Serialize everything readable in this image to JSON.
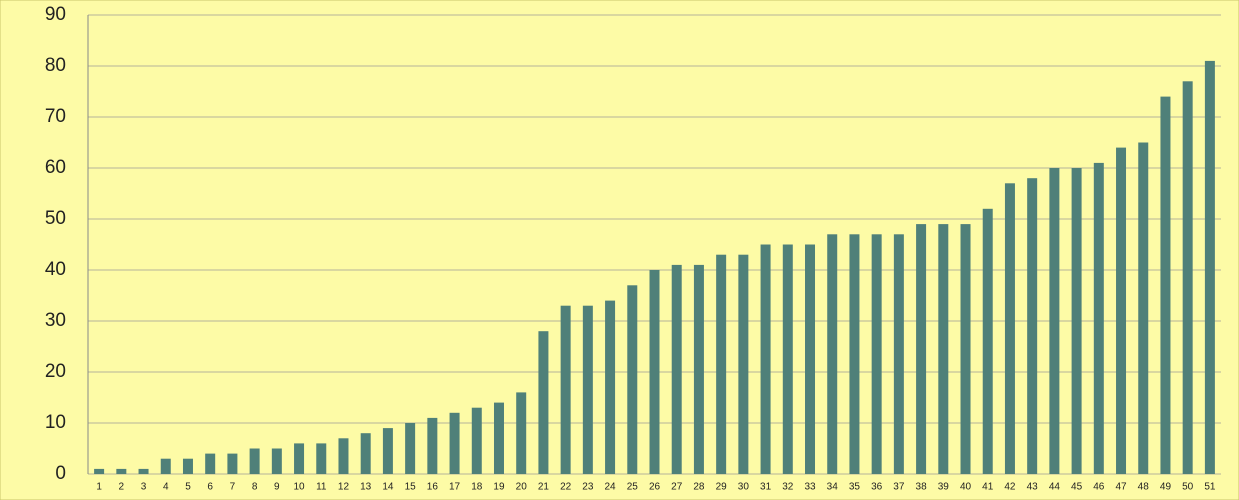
{
  "chart_data": {
    "type": "bar",
    "categories": [
      "1",
      "2",
      "3",
      "4",
      "5",
      "6",
      "7",
      "8",
      "9",
      "10",
      "11",
      "12",
      "13",
      "14",
      "15",
      "16",
      "17",
      "18",
      "19",
      "20",
      "21",
      "22",
      "23",
      "24",
      "25",
      "26",
      "27",
      "28",
      "29",
      "30",
      "31",
      "32",
      "33",
      "34",
      "35",
      "36",
      "37",
      "38",
      "39",
      "40",
      "41",
      "42",
      "43",
      "44",
      "45",
      "46",
      "47",
      "48",
      "49",
      "50",
      "51"
    ],
    "values": [
      1,
      1,
      1,
      3,
      3,
      4,
      4,
      5,
      5,
      6,
      6,
      7,
      8,
      9,
      10,
      11,
      12,
      13,
      14,
      16,
      28,
      33,
      33,
      34,
      37,
      40,
      41,
      41,
      43,
      43,
      45,
      45,
      45,
      47,
      47,
      47,
      47,
      49,
      49,
      49,
      52,
      57,
      58,
      60,
      60,
      61,
      64,
      65,
      74,
      77,
      81
    ],
    "color": "#4f8079",
    "ylim": [
      0,
      90
    ],
    "yticks": [
      0,
      10,
      20,
      30,
      40,
      50,
      60,
      70,
      80,
      90
    ],
    "grid": true
  }
}
